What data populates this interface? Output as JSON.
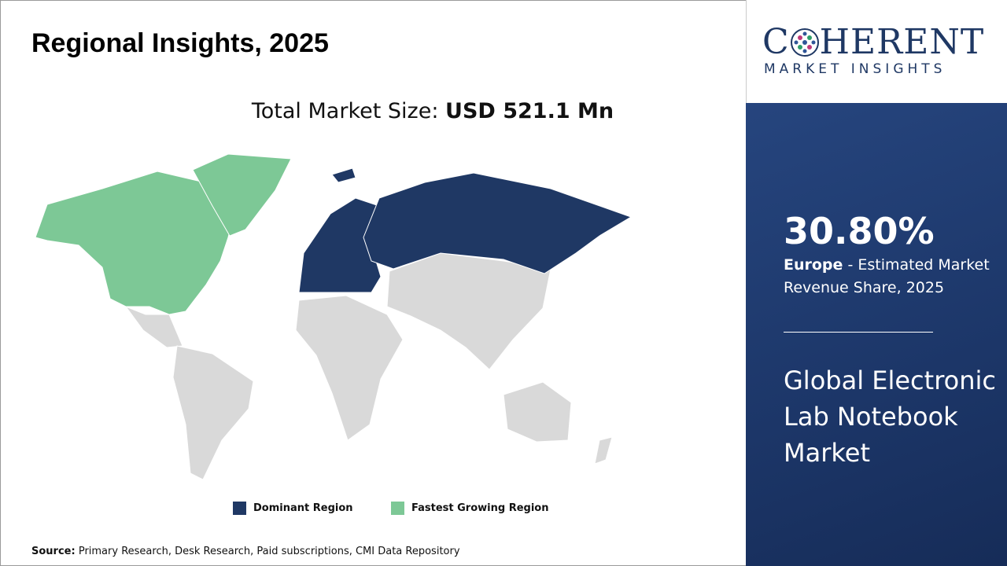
{
  "header": {
    "title": "Regional Insights, 2025"
  },
  "market_size": {
    "label": "Total Market Size:",
    "value": "USD 521.1 Mn"
  },
  "legend": [
    {
      "label": "Dominant Region",
      "color": "#1f3864"
    },
    {
      "label": "Fastest Growing Region",
      "color": "#7dc896"
    }
  ],
  "source": {
    "label": "Source:",
    "text": "Primary Research, Desk Research, Paid subscriptions, CMI Data Repository"
  },
  "logo": {
    "name_start": "C",
    "name_end": "HERENT",
    "tagline": "MARKET INSIGHTS"
  },
  "sidebar": {
    "share": "30.80%",
    "region": "Europe",
    "share_caption": " - Estimated Market Revenue Share, 2025",
    "market": "Global Electronic Lab Notebook Market"
  }
}
